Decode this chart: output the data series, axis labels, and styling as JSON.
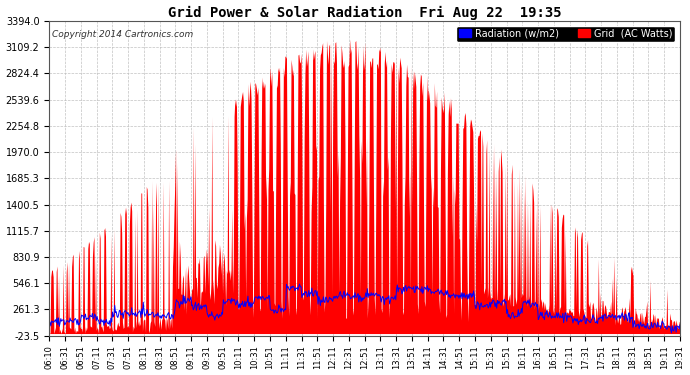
{
  "title": "Grid Power & Solar Radiation  Fri Aug 22  19:35",
  "copyright": "Copyright 2014 Cartronics.com",
  "bg_color": "#ffffff",
  "plot_bg_color": "#ffffff",
  "grid_color": "#bbbbbb",
  "yticks": [
    -23.5,
    261.3,
    546.1,
    830.9,
    1115.7,
    1400.5,
    1685.3,
    1970.0,
    2254.8,
    2539.6,
    2824.4,
    3109.2,
    3394.0
  ],
  "ymin": -23.5,
  "ymax": 3394.0,
  "legend_radiation_label": "Radiation (w/m2)",
  "legend_grid_label": "Grid  (AC Watts)",
  "radiation_color": "#ff0000",
  "grid_line_color": "#0000ff",
  "xtick_labels": [
    "06:10",
    "06:31",
    "06:51",
    "07:11",
    "07:31",
    "07:51",
    "08:11",
    "08:31",
    "08:51",
    "09:11",
    "09:31",
    "09:51",
    "10:11",
    "10:31",
    "10:51",
    "11:11",
    "11:31",
    "11:51",
    "12:11",
    "12:31",
    "12:51",
    "13:11",
    "13:31",
    "13:51",
    "14:11",
    "14:31",
    "14:51",
    "15:11",
    "15:31",
    "15:51",
    "16:11",
    "16:31",
    "16:51",
    "17:11",
    "17:31",
    "17:51",
    "18:11",
    "18:31",
    "18:51",
    "19:11",
    "19:31"
  ]
}
